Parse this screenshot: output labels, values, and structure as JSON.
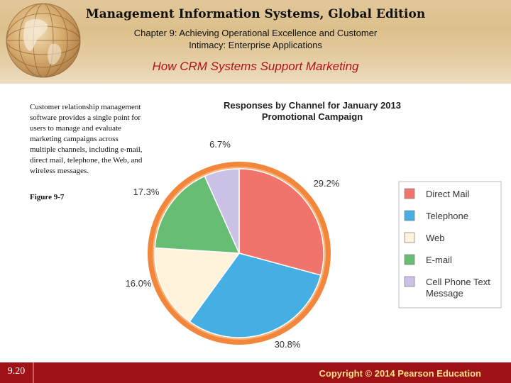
{
  "header": {
    "title": "Management Information Systems, Global Edition",
    "subtitle_line1": "Chapter 9: Achieving Operational Excellence and Customer",
    "subtitle_line2": "Intimacy: Enterprise Applications"
  },
  "slide": {
    "title": "How CRM Systems Support Marketing",
    "body": "Customer relationship management software provides a single point for users to manage and evaluate marketing campaigns across multiple channels, including e-mail, direct mail, telephone, the Web, and wireless messages.",
    "figure_label": "Figure 9-7"
  },
  "footer": {
    "page_number": "9.20",
    "copyright": "Copyright © 2014 Pearson Education"
  },
  "colors": {
    "header_bg": "#dcc08c",
    "title_red": "#b1131b",
    "footer_bg": "#9e1116",
    "copyright_gold": "#ffe18a",
    "ring_orange": "#f2863a"
  },
  "chart_data": {
    "type": "pie",
    "title_line1": "Responses by Channel for January 2013",
    "title_line2": "Promotional Campaign",
    "series": [
      {
        "name": "Direct Mail",
        "value": 29.2,
        "label": "29.2%",
        "color": "#f0746b"
      },
      {
        "name": "Telephone",
        "value": 30.8,
        "label": "30.8%",
        "color": "#45aee3"
      },
      {
        "name": "Web",
        "value": 16.0,
        "label": "16.0%",
        "color": "#fff3dc"
      },
      {
        "name": "E-mail",
        "value": 17.3,
        "label": "17.3%",
        "color": "#67bd74"
      },
      {
        "name": "Cell Phone Text Message",
        "value": 6.7,
        "label": "6.7%",
        "color": "#cbc1e6",
        "legend_line1": "Cell Phone Text",
        "legend_line2": "Message"
      }
    ],
    "legend_position": "right",
    "start_angle_deg": 0,
    "direction": "clockwise"
  }
}
